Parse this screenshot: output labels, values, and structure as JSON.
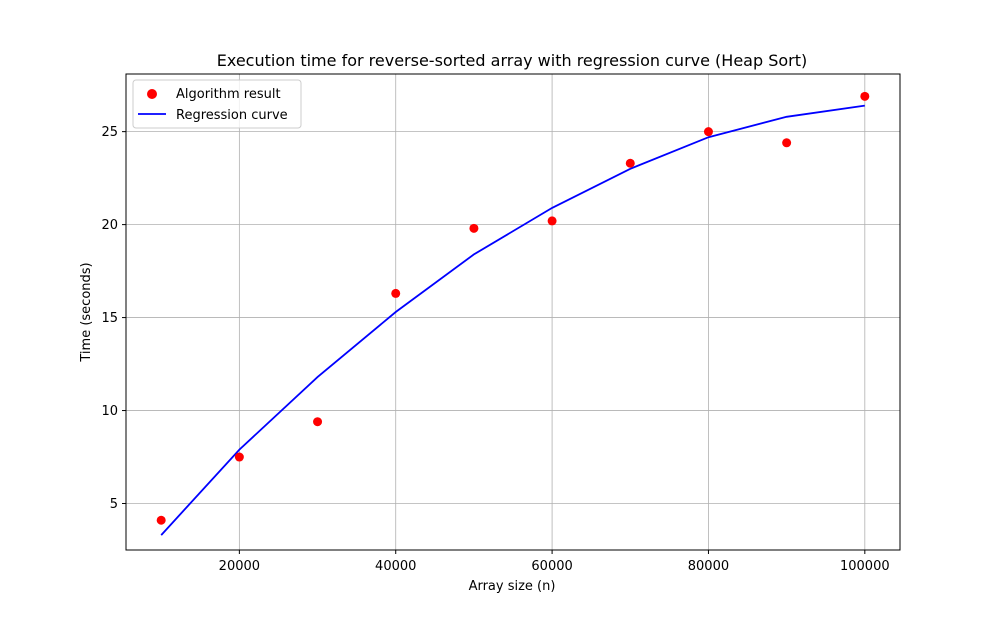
{
  "chart_data": {
    "type": "scatter",
    "title": "Execution time for reverse-sorted array with regression curve (Heap Sort)",
    "xlabel": "Array size (n)",
    "ylabel": "Time (seconds)",
    "xlim": [
      5500,
      104500
    ],
    "ylim": [
      2.5,
      28.1
    ],
    "xticks": [
      20000,
      40000,
      60000,
      80000,
      100000
    ],
    "yticks": [
      5,
      10,
      15,
      20,
      25
    ],
    "grid": true,
    "legend_position": "top-left",
    "series": [
      {
        "name": "Algorithm result",
        "kind": "scatter",
        "color": "#ff0000",
        "x": [
          10000,
          20000,
          30000,
          40000,
          50000,
          60000,
          70000,
          80000,
          90000,
          100000
        ],
        "y": [
          4.1,
          7.5,
          9.4,
          16.3,
          19.8,
          20.2,
          23.3,
          25.0,
          24.4,
          26.9
        ]
      },
      {
        "name": "Regression curve",
        "kind": "line",
        "color": "#0000ff",
        "x": [
          10000,
          20000,
          30000,
          40000,
          50000,
          60000,
          70000,
          80000,
          90000,
          100000
        ],
        "y": [
          3.3,
          7.9,
          11.8,
          15.3,
          18.4,
          20.9,
          23.0,
          24.7,
          25.8,
          26.4
        ]
      }
    ]
  }
}
